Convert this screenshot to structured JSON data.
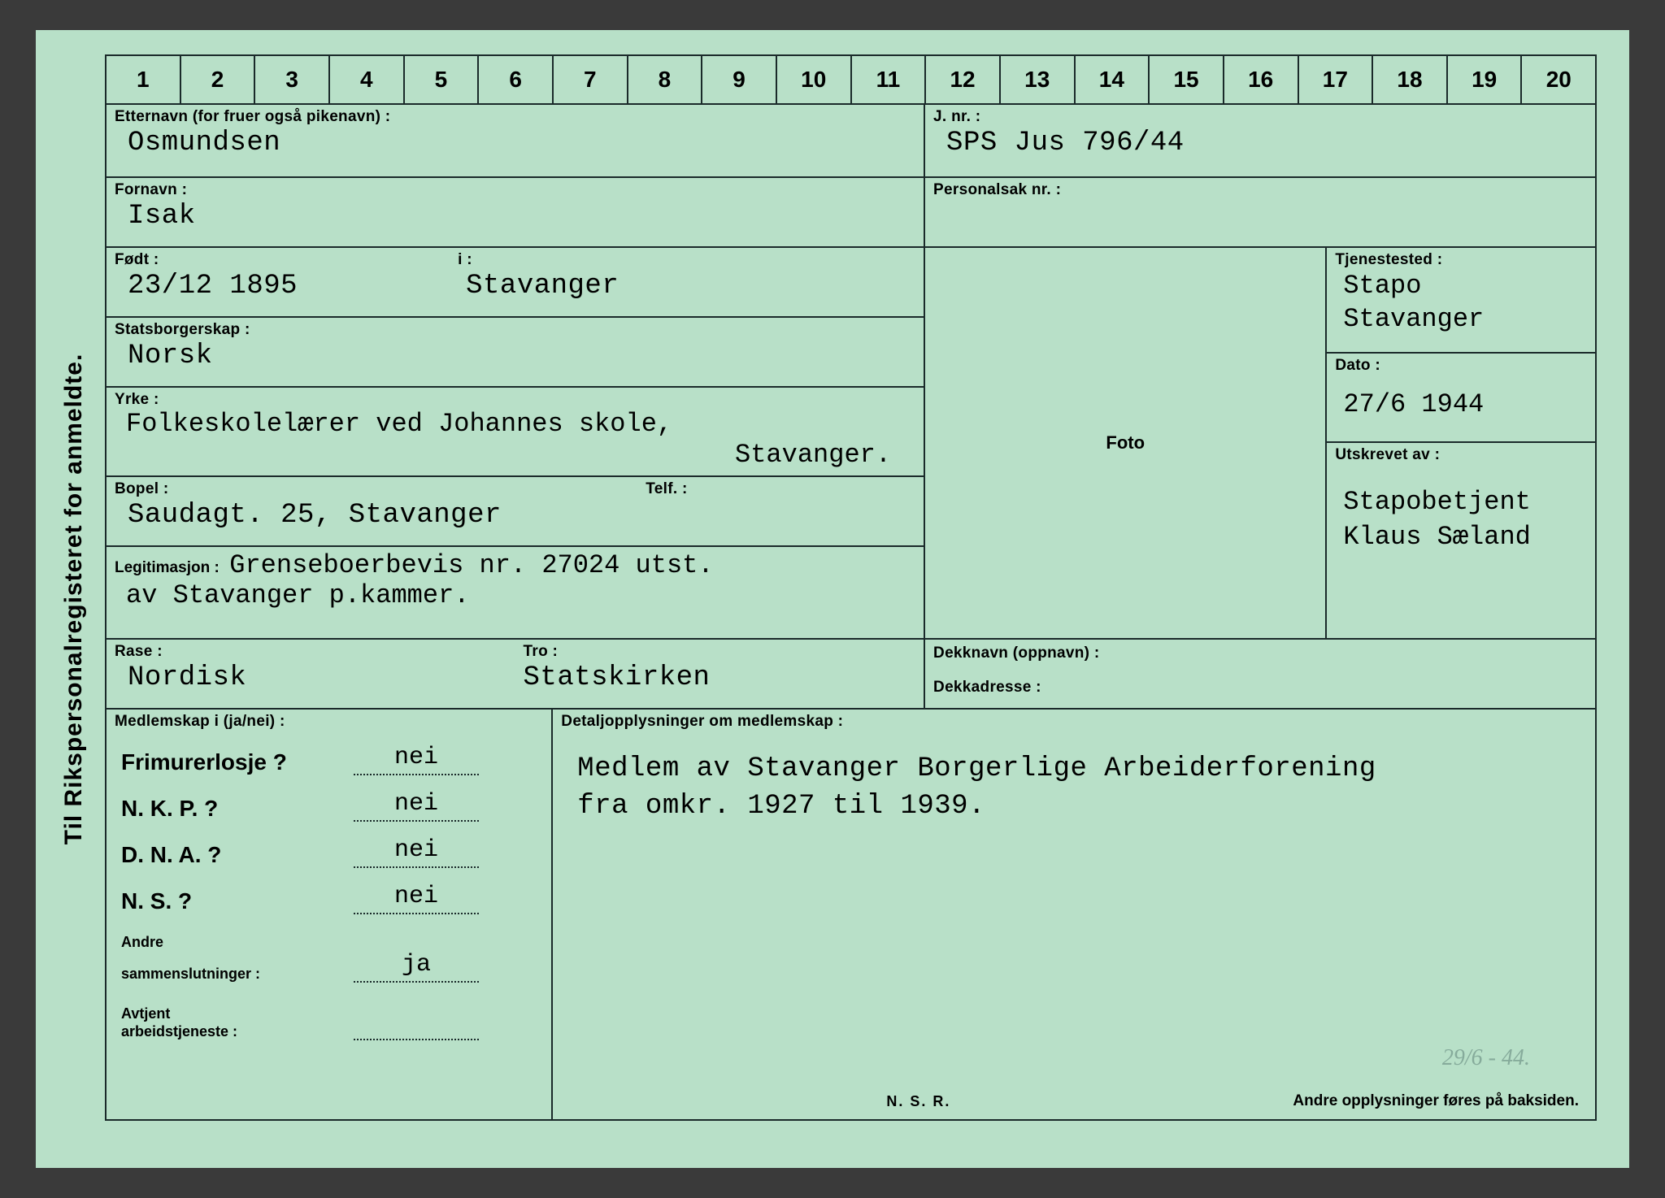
{
  "colors": {
    "card_bg": "#b8e0c8",
    "line": "#1a2a2a",
    "page_bg": "#3a3a3a"
  },
  "side_title": "Til Rikspersonalregisteret for anmeldte.",
  "ruler": [
    "1",
    "2",
    "3",
    "4",
    "5",
    "6",
    "7",
    "8",
    "9",
    "10",
    "11",
    "12",
    "13",
    "14",
    "15",
    "16",
    "17",
    "18",
    "19",
    "20"
  ],
  "labels": {
    "etternavn": "Etternavn (for fruer også pikenavn) :",
    "fornavn": "Fornavn :",
    "fodt": "Født :",
    "fodt_i": "i :",
    "stats": "Statsborgerskap :",
    "yrke": "Yrke :",
    "bopel": "Bopel :",
    "telf": "Telf. :",
    "legit": "Legitimasjon :",
    "rase": "Rase :",
    "tro": "Tro :",
    "jnr": "J. nr. :",
    "personalsak": "Personalsak nr. :",
    "tjenested": "Tjenestested :",
    "dato": "Dato :",
    "utskrevet": "Utskrevet av :",
    "foto": "Foto",
    "dekknavn": "Dekknavn (oppnavn) :",
    "dekkadresse": "Dekkadresse :",
    "medlemskap": "Medlemskap i (ja/nei) :",
    "detalj": "Detaljopplysninger om medlemskap :",
    "frimurer": "Frimurerlosje ?",
    "nkp": "N. K. P. ?",
    "dna": "D. N. A. ?",
    "ns": "N. S. ?",
    "andre": "Andre\nsammenslutninger :",
    "andre_l1": "Andre",
    "andre_l2": "sammenslutninger :",
    "avtjent_l1": "Avtjent",
    "avtjent_l2": "arbeidstjeneste :",
    "nsr": "N. S. R.",
    "footer": "Andre opplysninger føres på baksiden."
  },
  "values": {
    "etternavn": "Osmundsen",
    "fornavn": "Isak",
    "fodt": "23/12 1895",
    "fodt_i": "Stavanger",
    "stats": "Norsk",
    "yrke_l1": "Folkeskolelærer ved Johannes skole,",
    "yrke_l2": "Stavanger.",
    "bopel": "Saudagt. 25, Stavanger",
    "legit_l1": "Grenseboerbevis nr. 27024 utst.",
    "legit_l2": "av Stavanger p.kammer.",
    "rase": "Nordisk",
    "tro": "Statskirken",
    "jnr": "SPS Jus 796/44",
    "tjenested_l1": "Stapo",
    "tjenested_l2": "Stavanger",
    "dato": "27/6 1944",
    "utskrevet_l1": "Stapobetjent",
    "utskrevet_l2": "Klaus Sæland",
    "frimurer": "nei",
    "nkp": "nei",
    "dna": "nei",
    "ns": "nei",
    "andre": "ja",
    "detalj_l1": "Medlem av Stavanger Borgerlige Arbeiderforening",
    "detalj_l2": "fra omkr. 1927 til 1939.",
    "pencil": "29/6 - 44."
  }
}
